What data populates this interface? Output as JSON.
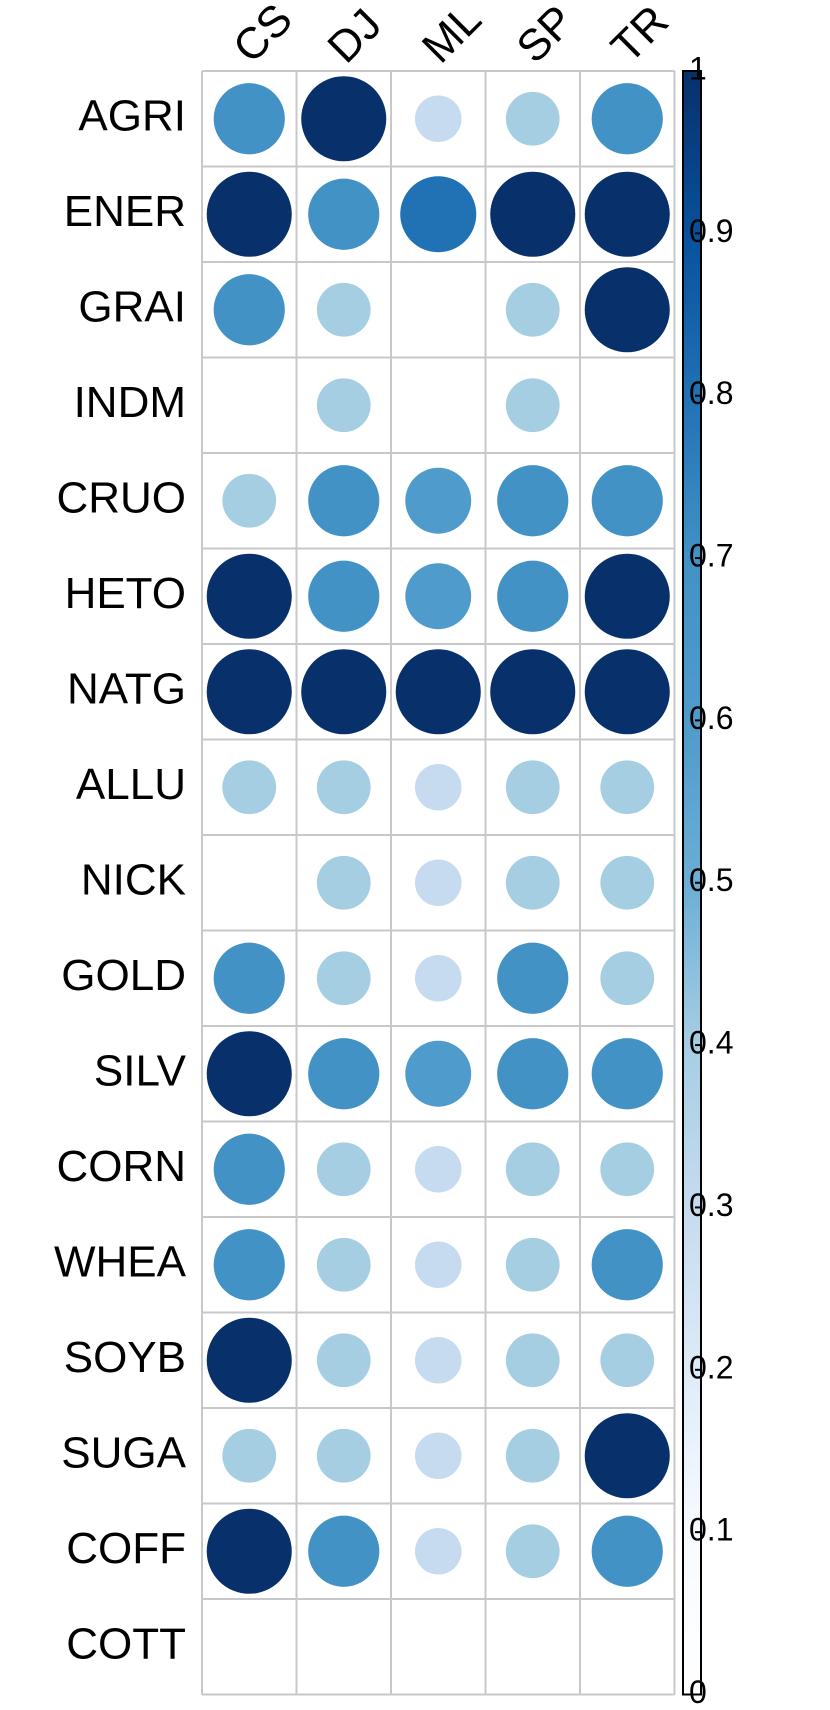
{
  "chart_data": {
    "type": "corrplot",
    "columns": [
      "CS",
      "DJ",
      "ML",
      "SP",
      "TR"
    ],
    "rows": [
      "AGRI",
      "ENER",
      "GRAI",
      "INDM",
      "CRUO",
      "HETO",
      "NATG",
      "ALLU",
      "NICK",
      "GOLD",
      "SILV",
      "CORN",
      "WHEA",
      "SOYB",
      "SUGA",
      "COFF",
      "COTT"
    ],
    "values": [
      [
        0.7,
        1,
        0.3,
        0.4,
        0.7
      ],
      [
        1,
        0.7,
        0.8,
        1,
        1
      ],
      [
        0.7,
        0.4,
        0,
        0.4,
        1
      ],
      [
        0,
        0.4,
        0,
        0.4,
        0
      ],
      [
        0.4,
        0.7,
        0.6,
        0.7,
        0.7
      ],
      [
        1,
        0.7,
        0.6,
        0.7,
        1
      ],
      [
        1,
        1,
        1,
        1,
        1
      ],
      [
        0.4,
        0.4,
        0.3,
        0.4,
        0.4
      ],
      [
        0,
        0.4,
        0.3,
        0.4,
        0.4
      ],
      [
        0.7,
        0.4,
        0.3,
        0.7,
        0.4
      ],
      [
        1,
        0.7,
        0.6,
        0.7,
        0.7
      ],
      [
        0.7,
        0.4,
        0.3,
        0.4,
        0.4
      ],
      [
        0.7,
        0.4,
        0.3,
        0.4,
        0.7
      ],
      [
        1,
        0.4,
        0.3,
        0.4,
        0.4
      ],
      [
        0.4,
        0.4,
        0.3,
        0.4,
        1
      ],
      [
        1,
        0.7,
        0.3,
        0.4,
        0.7
      ],
      [
        0,
        0,
        0,
        0,
        0
      ]
    ],
    "colorscale": [
      "#ffffff",
      "#f7fbff",
      "#deebf7",
      "#c6dbef",
      "#a6cee3",
      "#6baed6",
      "#4f9bcb",
      "#4292c6",
      "#2171b5",
      "#08519c",
      "#08306b"
    ],
    "clim": [
      0,
      1
    ],
    "cticks": [
      0,
      0.1,
      0.2,
      0.3,
      0.4,
      0.5,
      0.6,
      0.7,
      0.8,
      0.9,
      1
    ]
  }
}
